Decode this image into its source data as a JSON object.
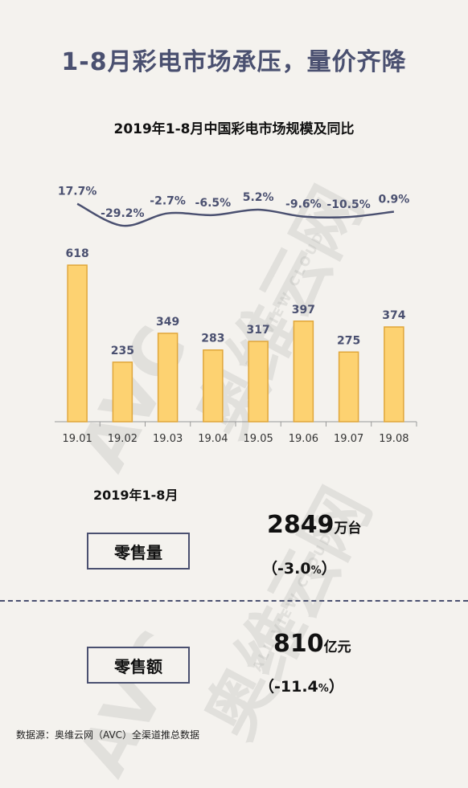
{
  "headline": "1-8月彩电市场承压，量价齐降",
  "watermark": {
    "brand": "AVC",
    "cn": "奥维云网",
    "en": "ALL VIEW CLOUD"
  },
  "chart_data": {
    "type": "bar",
    "title": "2019年1-8月中国彩电市场规模及同比",
    "categories": [
      "19.01",
      "19.02",
      "19.03",
      "19.04",
      "19.05",
      "19.06",
      "19.07",
      "19.08"
    ],
    "values": [
      618,
      235,
      349,
      283,
      317,
      397,
      275,
      374
    ],
    "yoy": [
      17.7,
      -29.2,
      -2.7,
      -6.5,
      5.2,
      -9.6,
      -10.5,
      0.9
    ],
    "yoy_labels": [
      "17.7%",
      "-29.2%",
      "-2.7%",
      "-6.5%",
      "5.2%",
      "-9.6%",
      "-10.5%",
      "0.9%"
    ],
    "bar_color": "#fdd271",
    "bar_stroke": "#e0a63a",
    "line_color": "#4a5070",
    "ylim": [
      0,
      650
    ]
  },
  "summary": {
    "period": "2019年1-8月",
    "volume": {
      "label": "零售量",
      "value": "2849",
      "unit": "万台",
      "open": "（",
      "pct": "-3.0",
      "pct_sign": "%",
      "close": "）"
    },
    "amount": {
      "label": "零售额",
      "value": "810",
      "unit": "亿元",
      "open": "（",
      "pct": "-11.4",
      "pct_sign": "%",
      "close": "）"
    }
  },
  "source": "数据源：奥维云网（AVC）全渠道推总数据"
}
